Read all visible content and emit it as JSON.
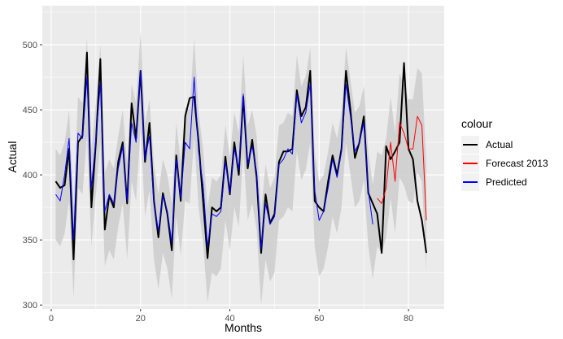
{
  "chart_data": {
    "type": "line",
    "title": "",
    "xlabel": "Months",
    "ylabel": "Actual",
    "xlim": [
      -2,
      88
    ],
    "ylim": [
      297,
      530
    ],
    "x_ticks": [
      0,
      20,
      40,
      60,
      80
    ],
    "y_ticks": [
      300,
      350,
      400,
      450,
      500
    ],
    "grid": true,
    "legend": {
      "title": "colour",
      "position": "right",
      "entries": [
        "Actual",
        "Forecast 2013",
        "Predicted"
      ]
    },
    "colors": {
      "panel_background": "#ebebeb",
      "grid": "#ffffff",
      "ribbon": "#cccccc",
      "Actual": "#000000",
      "Forecast 2013": "#ff0000",
      "Predicted": "#0000ff"
    },
    "series": [
      {
        "name": "Actual",
        "x": [
          1,
          2,
          3,
          4,
          5,
          6,
          7,
          8,
          9,
          10,
          11,
          12,
          13,
          14,
          15,
          16,
          17,
          18,
          19,
          20,
          21,
          22,
          23,
          24,
          25,
          26,
          27,
          28,
          29,
          30,
          31,
          32,
          33,
          34,
          35,
          36,
          37,
          38,
          39,
          40,
          41,
          42,
          43,
          44,
          45,
          46,
          47,
          48,
          49,
          50,
          51,
          52,
          53,
          54,
          55,
          56,
          57,
          58,
          59,
          60,
          61,
          62,
          63,
          64,
          65,
          66,
          67,
          68,
          69,
          70,
          71,
          72,
          73,
          74,
          75,
          76,
          77,
          78,
          79,
          80,
          81,
          82,
          83,
          84
        ],
        "values": [
          395,
          390,
          392,
          420,
          335,
          425,
          430,
          494,
          375,
          425,
          489,
          358,
          384,
          375,
          410,
          425,
          378,
          455,
          428,
          480,
          410,
          440,
          380,
          352,
          386,
          370,
          342,
          415,
          380,
          445,
          459,
          460,
          425,
          380,
          336,
          375,
          372,
          375,
          414,
          385,
          425,
          400,
          460,
          405,
          427,
          398,
          340,
          385,
          363,
          370,
          410,
          418,
          418,
          420,
          465,
          445,
          452,
          480,
          380,
          375,
          372,
          395,
          415,
          400,
          420,
          480,
          450,
          413,
          425,
          445,
          386,
          378,
          370,
          340,
          422,
          412,
          418,
          425,
          486,
          420,
          412,
          380,
          365,
          340
        ]
      },
      {
        "name": "Forecast 2013",
        "x": [
          73,
          74,
          75,
          76,
          77,
          78,
          79,
          80,
          81,
          82,
          83,
          84
        ],
        "values": [
          382,
          378,
          390,
          425,
          395,
          440,
          432,
          420,
          420,
          445,
          438,
          365
        ]
      },
      {
        "name": "Predicted",
        "x": [
          1,
          2,
          3,
          4,
          5,
          6,
          7,
          8,
          9,
          10,
          11,
          12,
          13,
          14,
          15,
          16,
          17,
          18,
          19,
          20,
          21,
          22,
          23,
          24,
          25,
          26,
          27,
          28,
          29,
          30,
          31,
          32,
          33,
          34,
          35,
          36,
          37,
          38,
          39,
          40,
          41,
          42,
          43,
          44,
          45,
          46,
          47,
          48,
          49,
          50,
          51,
          52,
          53,
          54,
          55,
          56,
          57,
          58,
          59,
          60,
          61,
          62,
          63,
          64,
          65,
          66,
          67,
          68,
          69,
          70,
          71,
          72
        ],
        "values": [
          385,
          380,
          400,
          428,
          350,
          432,
          428,
          475,
          390,
          428,
          470,
          372,
          385,
          378,
          405,
          422,
          380,
          440,
          425,
          480,
          412,
          430,
          378,
          357,
          384,
          372,
          348,
          412,
          382,
          425,
          420,
          475,
          418,
          392,
          345,
          370,
          368,
          372,
          410,
          386,
          420,
          404,
          462,
          408,
          422,
          402,
          343,
          378,
          362,
          368,
          408,
          412,
          420,
          416,
          462,
          440,
          448,
          470,
          388,
          365,
          372,
          390,
          412,
          398,
          418,
          470,
          445,
          418,
          425,
          440,
          388,
          362
        ]
      }
    ],
    "ribbon": {
      "name": "Predicted interval",
      "x": [
        1,
        2,
        3,
        4,
        5,
        6,
        7,
        8,
        9,
        10,
        11,
        12,
        13,
        14,
        15,
        16,
        17,
        18,
        19,
        20,
        21,
        22,
        23,
        24,
        25,
        26,
        27,
        28,
        29,
        30,
        31,
        32,
        33,
        34,
        35,
        36,
        37,
        38,
        39,
        40,
        41,
        42,
        43,
        44,
        45,
        46,
        47,
        48,
        49,
        50,
        51,
        52,
        53,
        54,
        55,
        56,
        57,
        58,
        59,
        60,
        61,
        62,
        63,
        64,
        65,
        66,
        67,
        68,
        69,
        70,
        71,
        72,
        73,
        74,
        75,
        76,
        77,
        78,
        79,
        80,
        81,
        82,
        83,
        84
      ],
      "lower": [
        350,
        345,
        355,
        380,
        305,
        390,
        385,
        430,
        345,
        385,
        425,
        330,
        342,
        335,
        360,
        378,
        335,
        395,
        380,
        435,
        368,
        388,
        335,
        312,
        340,
        328,
        305,
        368,
        338,
        380,
        378,
        430,
        375,
        348,
        302,
        325,
        322,
        328,
        365,
        342,
        375,
        360,
        418,
        365,
        378,
        358,
        300,
        335,
        318,
        325,
        365,
        368,
        375,
        372,
        418,
        396,
        404,
        425,
        345,
        322,
        328,
        345,
        368,
        355,
        375,
        425,
        400,
        375,
        380,
        395,
        345,
        320,
        345,
        340,
        352,
        382,
        355,
        398,
        392,
        380,
        378,
        402,
        395,
        325
      ],
      "upper": [
        420,
        415,
        425,
        450,
        375,
        460,
        455,
        505,
        420,
        455,
        500,
        402,
        412,
        405,
        430,
        450,
        408,
        470,
        455,
        510,
        440,
        458,
        408,
        385,
        412,
        400,
        378,
        440,
        410,
        452,
        450,
        505,
        448,
        420,
        375,
        398,
        395,
        400,
        438,
        414,
        448,
        432,
        492,
        438,
        450,
        430,
        372,
        408,
        390,
        398,
        438,
        440,
        448,
        445,
        492,
        468,
        476,
        498,
        418,
        395,
        400,
        418,
        440,
        428,
        448,
        498,
        473,
        448,
        453,
        468,
        418,
        392,
        418,
        415,
        428,
        460,
        432,
        478,
        470,
        458,
        458,
        482,
        478,
        408
      ]
    }
  }
}
